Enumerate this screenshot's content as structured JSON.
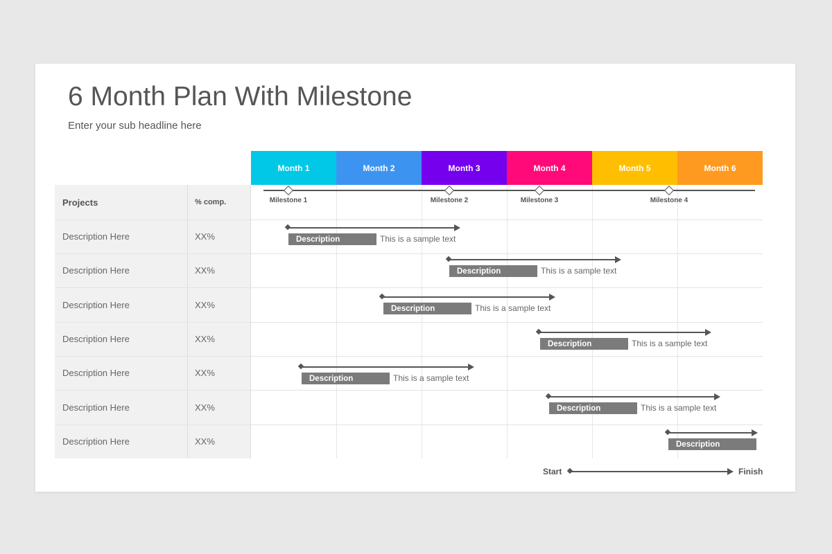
{
  "header": {
    "title": "6 Month Plan With Milestone",
    "subtitle": "Enter your sub headline here"
  },
  "months": [
    {
      "label": "Month 1",
      "color": "#00c8e6"
    },
    {
      "label": "Month 2",
      "color": "#3d94f0"
    },
    {
      "label": "Month 3",
      "color": "#7400ee"
    },
    {
      "label": "Month 4",
      "color": "#ff0a78"
    },
    {
      "label": "Month 5",
      "color": "#ffbe00"
    },
    {
      "label": "Month 6",
      "color": "#ff9a20"
    }
  ],
  "table": {
    "col_projects": "Projects",
    "col_comp": "% comp.",
    "rows": [
      {
        "project": "Description Here",
        "comp": "XX%",
        "bar_label": "Description",
        "bar_text": "This is a sample text"
      },
      {
        "project": "Description Here",
        "comp": "XX%",
        "bar_label": "Description",
        "bar_text": "This is a sample text"
      },
      {
        "project": "Description Here",
        "comp": "XX%",
        "bar_label": "Description",
        "bar_text": "This is a sample text"
      },
      {
        "project": "Description Here",
        "comp": "XX%",
        "bar_label": "Description",
        "bar_text": "This is a sample text"
      },
      {
        "project": "Description Here",
        "comp": "XX%",
        "bar_label": "Description",
        "bar_text": "This is a sample text"
      },
      {
        "project": "Description Here",
        "comp": "XX%",
        "bar_label": "Description",
        "bar_text": "This is a sample text"
      },
      {
        "project": "Description Here",
        "comp": "XX%",
        "bar_label": "Description",
        "bar_text": ""
      }
    ]
  },
  "milestones": [
    "Milestone 1",
    "Milestone 2",
    "Milestone 3",
    "Milestone 4"
  ],
  "legend": {
    "start": "Start",
    "finish": "Finish"
  }
}
